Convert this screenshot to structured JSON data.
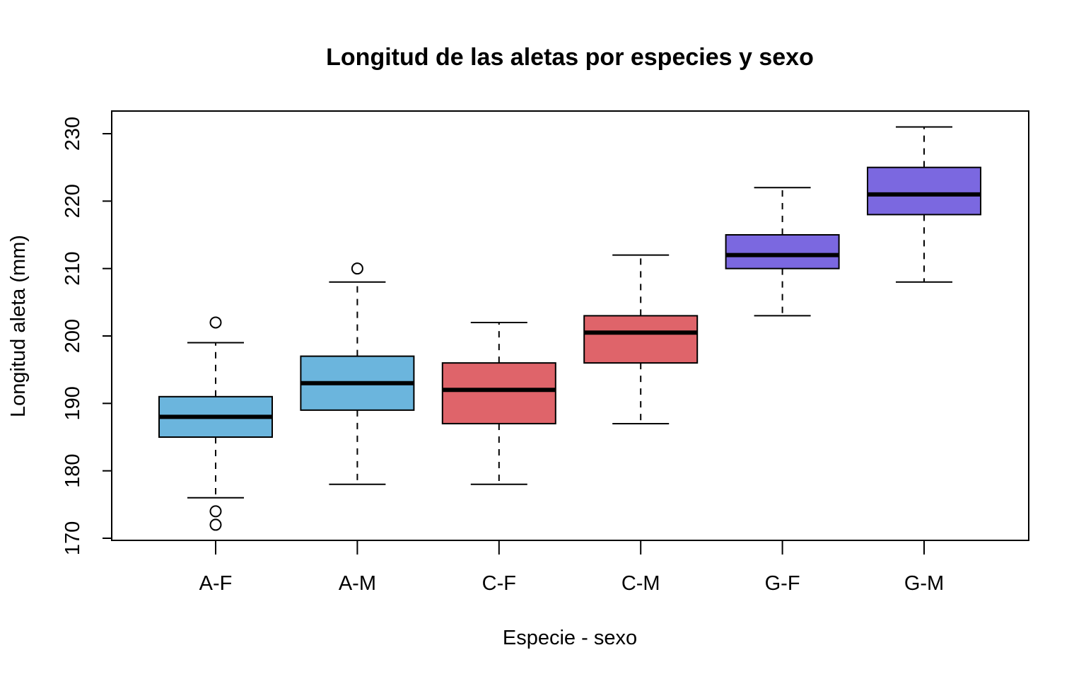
{
  "chart_data": {
    "type": "boxplot",
    "title": "Longitud de las aletas por especies y sexo",
    "xlabel": "Especie - sexo",
    "ylabel": "Longitud aleta (mm)",
    "ylim": [
      170,
      232
    ],
    "y_ticks": [
      170,
      180,
      190,
      200,
      210,
      220,
      230
    ],
    "y_tick_labels": [
      "170",
      "180",
      "190",
      "200",
      "210",
      "220",
      "230"
    ],
    "grid": false,
    "legend": "none",
    "categories": [
      "A-F",
      "A-M",
      "C-F",
      "C-M",
      "G-F",
      "G-M"
    ],
    "boxes": [
      {
        "label": "A-F",
        "whisker_low": 176,
        "q1": 185,
        "median": 188,
        "q3": 191,
        "whisker_high": 199,
        "outliers": [
          202,
          174,
          172
        ],
        "color": "#6BB5DD"
      },
      {
        "label": "A-M",
        "whisker_low": 178,
        "q1": 189,
        "median": 193,
        "q3": 197,
        "whisker_high": 208,
        "outliers": [
          210
        ],
        "color": "#6BB5DD"
      },
      {
        "label": "C-F",
        "whisker_low": 178,
        "q1": 187,
        "median": 192,
        "q3": 196,
        "whisker_high": 202,
        "outliers": [],
        "color": "#DF646A"
      },
      {
        "label": "C-M",
        "whisker_low": 187,
        "q1": 196,
        "median": 200.5,
        "q3": 203,
        "whisker_high": 212,
        "outliers": [],
        "color": "#DF646A"
      },
      {
        "label": "G-F",
        "whisker_low": 203,
        "q1": 210,
        "median": 212,
        "q3": 215,
        "whisker_high": 222,
        "outliers": [],
        "color": "#7B68E0"
      },
      {
        "label": "G-M",
        "whisker_low": 208,
        "q1": 218,
        "median": 221,
        "q3": 225,
        "whisker_high": 231,
        "outliers": [],
        "color": "#7B68E0"
      }
    ]
  }
}
